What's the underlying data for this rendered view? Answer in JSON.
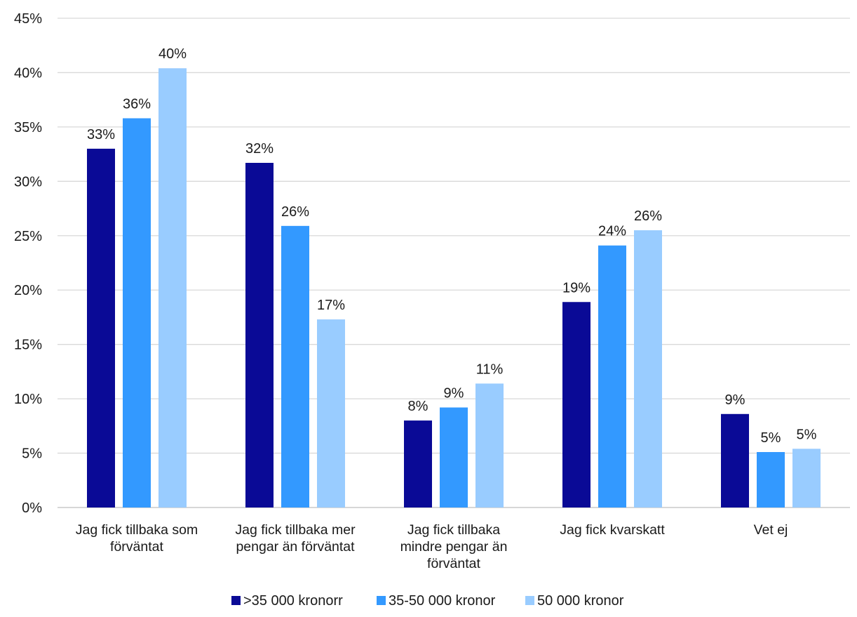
{
  "chart_data": {
    "type": "bar",
    "title": "",
    "xlabel": "",
    "ylabel": "",
    "ylim": [
      0,
      45
    ],
    "yticks": [
      "0%",
      "5%",
      "10%",
      "15%",
      "20%",
      "25%",
      "30%",
      "35%",
      "40%",
      "45%"
    ],
    "grid": true,
    "legend_position": "bottom",
    "categories": [
      [
        "Jag fick tillbaka som",
        "förväntat"
      ],
      [
        "Jag fick tillbaka mer",
        "pengar än förväntat"
      ],
      [
        "Jag fick tillbaka",
        "mindre pengar än",
        "förväntat"
      ],
      [
        "Jag fick kvarskatt"
      ],
      [
        "Vet ej"
      ]
    ],
    "series": [
      {
        "name": ">35 000 kronorr",
        "color": "#0a0a96",
        "values": [
          33,
          31.7,
          8,
          18.9,
          8.6
        ],
        "labels": [
          "33%",
          "32%",
          "8%",
          "19%",
          "9%"
        ]
      },
      {
        "name": "35-50 000 kronor",
        "color": "#3399ff",
        "values": [
          35.8,
          25.9,
          9.2,
          24.1,
          5.1
        ],
        "labels": [
          "36%",
          "26%",
          "9%",
          "24%",
          "5%"
        ]
      },
      {
        "name": "50 000 kronor",
        "color": "#99ccff",
        "values": [
          40.4,
          17.3,
          11.4,
          25.5,
          5.4
        ],
        "labels": [
          "40%",
          "17%",
          "11%",
          "26%",
          "5%"
        ]
      }
    ]
  }
}
